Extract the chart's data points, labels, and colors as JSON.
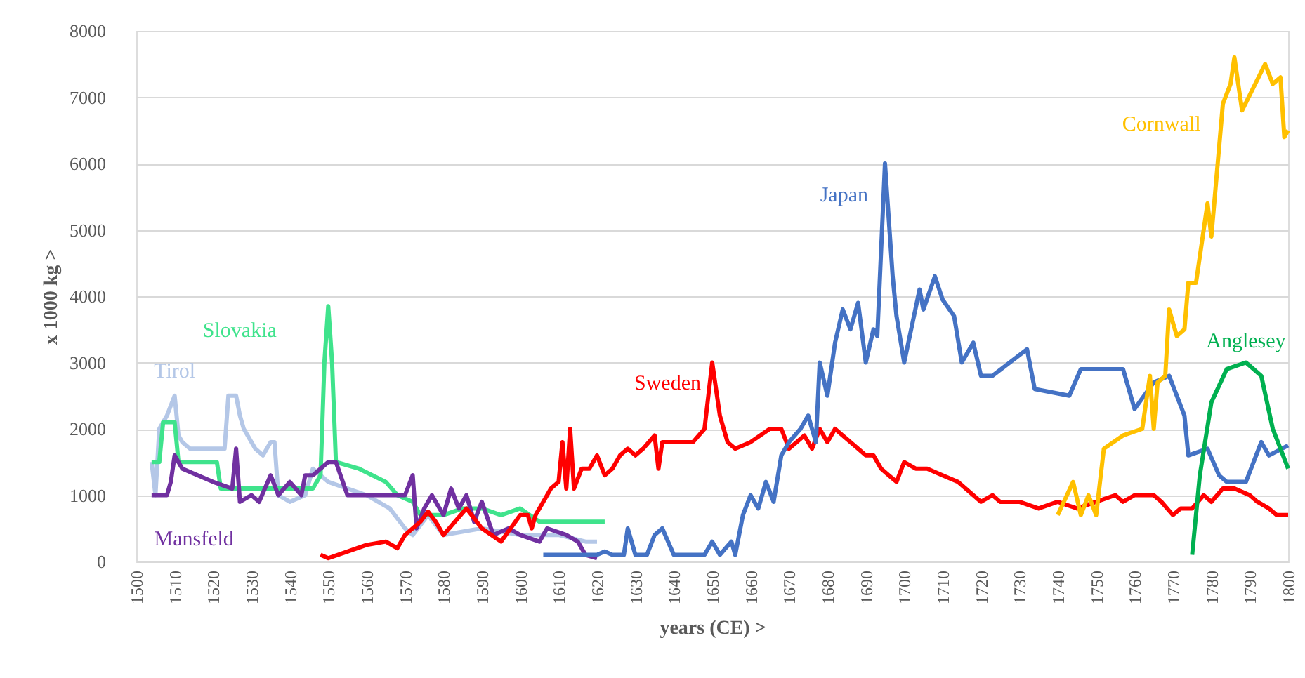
{
  "chart_data": {
    "type": "line",
    "xlabel": "years (CE) >",
    "ylabel": "x 1000 kg >",
    "xlim": [
      1500,
      1800
    ],
    "ylim": [
      0,
      8000
    ],
    "xticks": [
      1500,
      1510,
      1520,
      1530,
      1540,
      1550,
      1560,
      1570,
      1580,
      1590,
      1600,
      1610,
      1620,
      1630,
      1640,
      1650,
      1660,
      1670,
      1680,
      1690,
      1700,
      1710,
      1720,
      1730,
      1740,
      1750,
      1760,
      1770,
      1780,
      1790,
      1800
    ],
    "yticks": [
      0,
      1000,
      2000,
      3000,
      4000,
      5000,
      6000,
      7000,
      8000
    ],
    "grid": "y",
    "legend": false,
    "marker": "none",
    "line_style": "solid",
    "series": [
      {
        "name": "Tirol",
        "color": "#b4c7e7",
        "x": [
          1504,
          1505,
          1506,
          1508,
          1510,
          1511,
          1512,
          1514,
          1523,
          1524,
          1526,
          1527,
          1528,
          1531,
          1533,
          1535,
          1536,
          1537,
          1540,
          1544,
          1546,
          1548,
          1550,
          1555,
          1560,
          1566,
          1570,
          1572,
          1576,
          1580,
          1590,
          1600,
          1610,
          1617,
          1620
        ],
        "values": [
          1500,
          1000,
          2000,
          2200,
          2500,
          1900,
          1800,
          1700,
          1700,
          2500,
          2500,
          2200,
          2000,
          1700,
          1600,
          1800,
          1800,
          1000,
          900,
          1000,
          1400,
          1300,
          1200,
          1100,
          1000,
          800,
          500,
          400,
          700,
          400,
          500,
          400,
          400,
          300,
          300
        ]
      },
      {
        "name": "Slovakia",
        "color": "#3fe38c",
        "x": [
          1504,
          1506,
          1507,
          1510,
          1511,
          1521,
          1522,
          1540,
          1546,
          1548,
          1549,
          1550,
          1551,
          1552,
          1558,
          1565,
          1568,
          1572,
          1574,
          1580,
          1585,
          1590,
          1595,
          1600,
          1605,
          1622
        ],
        "values": [
          1500,
          1500,
          2100,
          2100,
          1500,
          1500,
          1100,
          1100,
          1100,
          1300,
          3000,
          3850,
          3000,
          1500,
          1400,
          1200,
          1000,
          900,
          700,
          700,
          800,
          800,
          700,
          800,
          600,
          600
        ]
      },
      {
        "name": "Mansfeld",
        "color": "#7030a0",
        "x": [
          1504,
          1508,
          1509,
          1510,
          1512,
          1520,
          1525,
          1526,
          1527,
          1530,
          1532,
          1535,
          1537,
          1540,
          1543,
          1544,
          1546,
          1548,
          1550,
          1552,
          1555,
          1570,
          1572,
          1573,
          1575,
          1577,
          1580,
          1582,
          1584,
          1586,
          1588,
          1590,
          1593,
          1597,
          1600,
          1605,
          1607,
          1612,
          1615,
          1617,
          1620
        ],
        "values": [
          1000,
          1000,
          1200,
          1600,
          1400,
          1200,
          1100,
          1700,
          900,
          1000,
          900,
          1300,
          1000,
          1200,
          1000,
          1300,
          1300,
          1400,
          1500,
          1500,
          1000,
          1000,
          1300,
          500,
          800,
          1000,
          700,
          1100,
          800,
          1000,
          600,
          900,
          400,
          500,
          400,
          300,
          500,
          400,
          300,
          100,
          50
        ]
      },
      {
        "name": "Sweden",
        "color": "#ff0000",
        "x": [
          1548,
          1550,
          1555,
          1560,
          1565,
          1568,
          1570,
          1574,
          1576,
          1578,
          1580,
          1583,
          1586,
          1590,
          1595,
          1600,
          1602,
          1603,
          1604,
          1606,
          1608,
          1610,
          1611,
          1612,
          1613,
          1614,
          1616,
          1618,
          1620,
          1622,
          1624,
          1626,
          1628,
          1630,
          1632,
          1635,
          1636,
          1637,
          1640,
          1645,
          1648,
          1650,
          1652,
          1654,
          1656,
          1660,
          1665,
          1668,
          1670,
          1672,
          1674,
          1676,
          1678,
          1680,
          1682,
          1684,
          1688,
          1690,
          1692,
          1694,
          1696,
          1698,
          1700,
          1703,
          1706,
          1710,
          1714,
          1716,
          1720,
          1723,
          1725,
          1730,
          1735,
          1740,
          1745,
          1750,
          1755,
          1757,
          1760,
          1765,
          1767,
          1770,
          1772,
          1775,
          1778,
          1780,
          1783,
          1786,
          1790,
          1792,
          1795,
          1797,
          1800
        ],
        "values": [
          100,
          50,
          150,
          250,
          300,
          200,
          400,
          600,
          750,
          600,
          400,
          600,
          800,
          500,
          300,
          700,
          700,
          500,
          700,
          900,
          1100,
          1200,
          1800,
          1100,
          2000,
          1100,
          1400,
          1400,
          1600,
          1300,
          1400,
          1600,
          1700,
          1600,
          1700,
          1900,
          1400,
          1800,
          1800,
          1800,
          2000,
          3000,
          2200,
          1800,
          1700,
          1800,
          2000,
          2000,
          1700,
          1800,
          1900,
          1700,
          2000,
          1800,
          2000,
          1900,
          1700,
          1600,
          1600,
          1400,
          1300,
          1200,
          1500,
          1400,
          1400,
          1300,
          1200,
          1100,
          900,
          1000,
          900,
          900,
          800,
          900,
          800,
          900,
          1000,
          900,
          1000,
          1000,
          900,
          700,
          800,
          800,
          1000,
          900,
          1100,
          1100,
          1000,
          900,
          800,
          700,
          700
        ]
      },
      {
        "name": "Japan",
        "color": "#4472c4",
        "x": [
          1606,
          1620,
          1622,
          1624,
          1627,
          1628,
          1630,
          1633,
          1635,
          1637,
          1640,
          1648,
          1650,
          1652,
          1655,
          1656,
          1658,
          1660,
          1662,
          1664,
          1666,
          1668,
          1670,
          1673,
          1675,
          1677,
          1678,
          1680,
          1682,
          1684,
          1686,
          1688,
          1690,
          1692,
          1693,
          1695,
          1697,
          1698,
          1700,
          1704,
          1705,
          1708,
          1710,
          1713,
          1715,
          1718,
          1720,
          1723,
          1732,
          1734,
          1743,
          1746,
          1757,
          1760,
          1765,
          1769,
          1773,
          1774,
          1779,
          1782,
          1784,
          1789,
          1793,
          1795,
          1800
        ],
        "values": [
          100,
          100,
          150,
          100,
          100,
          500,
          100,
          100,
          400,
          500,
          100,
          100,
          300,
          100,
          300,
          100,
          700,
          1000,
          800,
          1200,
          900,
          1600,
          1800,
          2000,
          2200,
          1800,
          3000,
          2500,
          3300,
          3800,
          3500,
          3900,
          3000,
          3500,
          3400,
          6000,
          4300,
          3700,
          3000,
          4100,
          3800,
          4300,
          3950,
          3700,
          3000,
          3300,
          2800,
          2800,
          3200,
          2600,
          2500,
          2900,
          2900,
          2300,
          2700,
          2800,
          2200,
          1600,
          1700,
          1300,
          1200,
          1200,
          1800,
          1600,
          1750
        ]
      },
      {
        "name": "Cornwall",
        "color": "#ffc000",
        "x": [
          1740,
          1744,
          1746,
          1748,
          1750,
          1752,
          1757,
          1762,
          1764,
          1765,
          1766,
          1768,
          1769,
          1771,
          1773,
          1774,
          1776,
          1779,
          1780,
          1783,
          1785,
          1786,
          1788,
          1794,
          1796,
          1798,
          1799,
          1800
        ],
        "values": [
          700,
          1200,
          700,
          1000,
          700,
          1700,
          1900,
          2000,
          2800,
          2000,
          2700,
          2800,
          3800,
          3400,
          3500,
          4200,
          4200,
          5400,
          4900,
          6900,
          7200,
          7600,
          6800,
          7500,
          7200,
          7300,
          6400,
          6500
        ]
      },
      {
        "name": "Anglesey",
        "color": "#00b050",
        "x": [
          1775,
          1777,
          1780,
          1784,
          1789,
          1793,
          1796,
          1800
        ],
        "values": [
          100,
          1300,
          2400,
          2900,
          3000,
          2800,
          2000,
          1400
        ]
      }
    ]
  }
}
